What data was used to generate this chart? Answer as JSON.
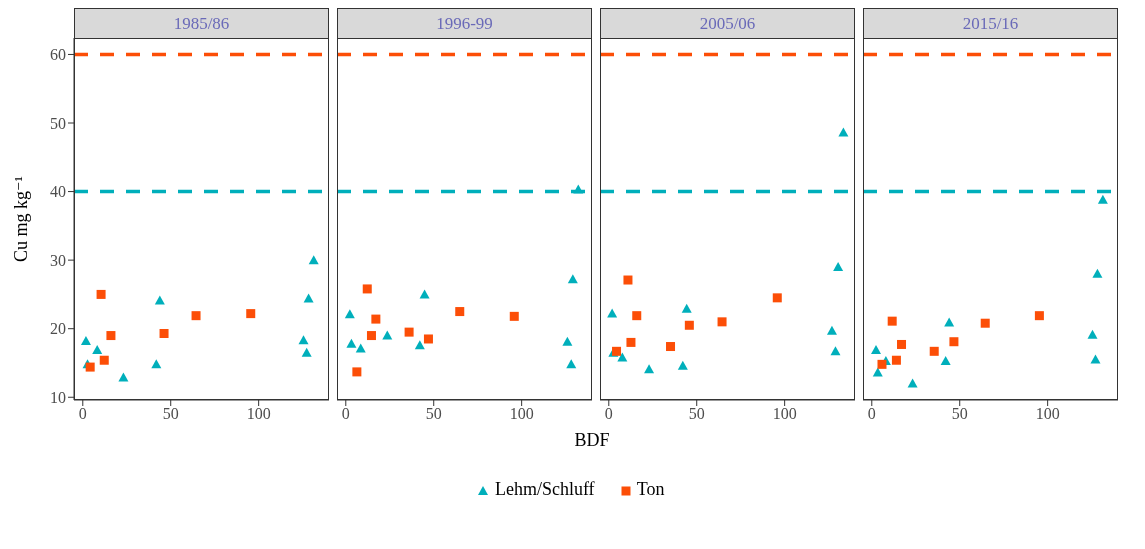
{
  "chart_data": [
    {
      "type": "scatter",
      "title": "1985/86",
      "ylabel": "Cu mg kg⁻¹",
      "legend": "bottom",
      "xlim": [
        -5,
        140
      ],
      "xticks": [
        0,
        50,
        100
      ],
      "ylim": [
        9.6,
        62.4
      ],
      "yticks": [
        10,
        20,
        30,
        40,
        50,
        60
      ],
      "grid": false,
      "ref_lines": [
        {
          "axis": "y",
          "value": 60,
          "color": "#fc4e07",
          "line_style": "dashed"
        },
        {
          "axis": "y",
          "value": 40,
          "color": "#00afbb",
          "line_style": "dashed"
        }
      ],
      "series": [
        {
          "name": "Lehm/Schluff",
          "color": "#00afbb",
          "marker": "triangle",
          "x": [
            1.8,
            2.7,
            8.2,
            23.1,
            41.8,
            43.8,
            125.5,
            127.3,
            128.4,
            131.3
          ],
          "values": [
            18.2,
            14.8,
            16.9,
            12.9,
            14.8,
            24.1,
            18.3,
            16.5,
            24.4,
            30
          ]
        },
        {
          "name": "Ton",
          "color": "#fc4e07",
          "marker": "square",
          "x": [
            4.2,
            10.4,
            12.2,
            16,
            46.2,
            64.4,
            95.5
          ],
          "values": [
            14.4,
            25,
            15.4,
            19,
            19.3,
            21.9,
            22.2
          ]
        }
      ]
    },
    {
      "type": "scatter",
      "title": "1996-99",
      "xlabel": "BDF",
      "tick_labels": "x",
      "xlim": [
        -5,
        140
      ],
      "xticks": [
        0,
        50,
        100
      ],
      "ylim": [
        9.6,
        62.4
      ],
      "grid": false,
      "ref_lines": [
        {
          "axis": "y",
          "value": 60,
          "color": "#fc4e07",
          "line_style": "dashed"
        },
        {
          "axis": "y",
          "value": 40,
          "color": "#00afbb",
          "line_style": "dashed"
        }
      ],
      "series": [
        {
          "color": "#00afbb",
          "marker": "triangle",
          "x": [
            2.3,
            3.2,
            8.5,
            23.6,
            42.1,
            44.8,
            126,
            128.2,
            129.1,
            132.2
          ],
          "values": [
            22.1,
            17.8,
            17.1,
            19,
            17.6,
            25,
            18.1,
            14.8,
            27.2,
            40.3
          ]
        },
        {
          "color": "#fc4e07",
          "marker": "square",
          "x": [
            6.3,
            12.2,
            14.6,
            17.1,
            36,
            47,
            64.8,
            95.8
          ],
          "values": [
            13.7,
            25.8,
            19,
            21.4,
            19.5,
            18.5,
            22.5,
            21.8
          ]
        }
      ]
    },
    {
      "type": "scatter",
      "title": "2005/06",
      "tick_labels": "x",
      "xlim": [
        -5,
        140
      ],
      "xticks": [
        0,
        50,
        100
      ],
      "ylim": [
        9.6,
        62.4
      ],
      "grid": false,
      "ref_lines": [
        {
          "axis": "y",
          "value": 60,
          "color": "#fc4e07",
          "line_style": "dashed"
        },
        {
          "axis": "y",
          "value": 40,
          "color": "#00afbb",
          "line_style": "dashed"
        }
      ],
      "series": [
        {
          "color": "#00afbb",
          "marker": "triangle",
          "x": [
            1.9,
            2.6,
            7.7,
            22.9,
            42.1,
            44.3,
            126.9,
            128.9,
            130.4,
            133.4
          ],
          "values": [
            22.2,
            16.5,
            15.8,
            14.1,
            14.6,
            22.9,
            19.7,
            16.7,
            29,
            48.6
          ]
        },
        {
          "color": "#fc4e07",
          "marker": "square",
          "x": [
            4.4,
            10.9,
            12.6,
            15.9,
            35.1,
            45.8,
            64.4,
            95.8
          ],
          "values": [
            16.7,
            27.1,
            18,
            21.9,
            17.4,
            20.5,
            21,
            24.5
          ]
        }
      ]
    },
    {
      "type": "scatter",
      "title": "2015/16",
      "tick_labels": "x",
      "xlim": [
        -5,
        140
      ],
      "xticks": [
        0,
        50,
        100
      ],
      "ylim": [
        9.6,
        62.4
      ],
      "grid": false,
      "ref_lines": [
        {
          "axis": "y",
          "value": 60,
          "color": "#fc4e07",
          "line_style": "dashed"
        },
        {
          "axis": "y",
          "value": 40,
          "color": "#00afbb",
          "line_style": "dashed"
        }
      ],
      "series": [
        {
          "color": "#00afbb",
          "marker": "triangle",
          "x": [
            2.4,
            3.4,
            8,
            23.2,
            42,
            44,
            125.5,
            127.2,
            128.3,
            131.4
          ],
          "values": [
            16.9,
            13.6,
            15.3,
            12,
            15.3,
            20.9,
            19.1,
            15.5,
            28,
            38.8
          ]
        },
        {
          "color": "#fc4e07",
          "marker": "square",
          "x": [
            5.8,
            11.6,
            14,
            16.9,
            35.5,
            46.7,
            64.5,
            95.3
          ],
          "values": [
            14.8,
            21.1,
            15.4,
            17.7,
            16.7,
            18.1,
            20.8,
            21.9
          ]
        }
      ]
    }
  ]
}
